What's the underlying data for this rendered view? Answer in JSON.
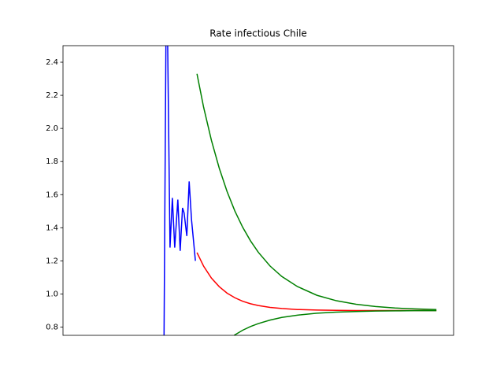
{
  "chart_data": {
    "type": "line",
    "title": "Rate infectious Chile",
    "xlim": [
      0,
      100
    ],
    "ylim": [
      0.75,
      2.5
    ],
    "yticks": [
      0.8,
      {
        "value": 1,
        "label": "1.0"
      },
      1.2,
      1.4,
      1.6,
      1.8,
      {
        "value": 2,
        "label": "2.0"
      },
      2.2,
      2.4
    ],
    "series": [
      {
        "color": "#0000ff",
        "x": [
          25.8,
          26.4,
          26.8,
          27.4,
          28.0,
          28.6,
          29.4,
          30.0,
          30.6,
          31.0,
          31.7,
          32.3,
          32.9,
          33.9
        ],
        "values": [
          0.5,
          2.7,
          2.5,
          1.28,
          1.58,
          1.28,
          1.57,
          1.26,
          1.52,
          1.49,
          1.35,
          1.68,
          1.45,
          1.2
        ]
      },
      {
        "color": "#ff0000",
        "x": [
          34.3,
          36,
          38,
          40,
          42,
          44,
          46,
          48,
          50,
          53,
          56,
          60,
          65,
          70,
          75,
          80,
          85,
          90,
          95.6
        ],
        "values": [
          1.25,
          1.168,
          1.096,
          1.044,
          1.005,
          0.977,
          0.956,
          0.941,
          0.93,
          0.919,
          0.912,
          0.906,
          0.903,
          0.901,
          0.9,
          0.9,
          0.9,
          0.9,
          0.9
        ]
      },
      {
        "color": "#008000",
        "x": [
          34.3,
          36,
          38,
          40,
          42,
          44,
          46,
          48,
          50,
          53,
          56,
          60,
          65,
          70,
          75,
          80,
          85,
          90,
          95.6
        ],
        "values": [
          2.33,
          2.128,
          1.928,
          1.76,
          1.619,
          1.501,
          1.403,
          1.321,
          1.252,
          1.169,
          1.106,
          1.045,
          0.992,
          0.959,
          0.938,
          0.924,
          0.915,
          0.91,
          0.906
        ]
      },
      {
        "color": "#008000",
        "x": [
          43.8,
          46,
          48,
          50,
          53,
          56,
          60,
          65,
          70,
          75,
          80,
          85,
          90,
          95.6
        ],
        "values": [
          0.75,
          0.781,
          0.803,
          0.821,
          0.842,
          0.858,
          0.872,
          0.884,
          0.89,
          0.894,
          0.897,
          0.898,
          0.899,
          0.899
        ]
      }
    ]
  }
}
